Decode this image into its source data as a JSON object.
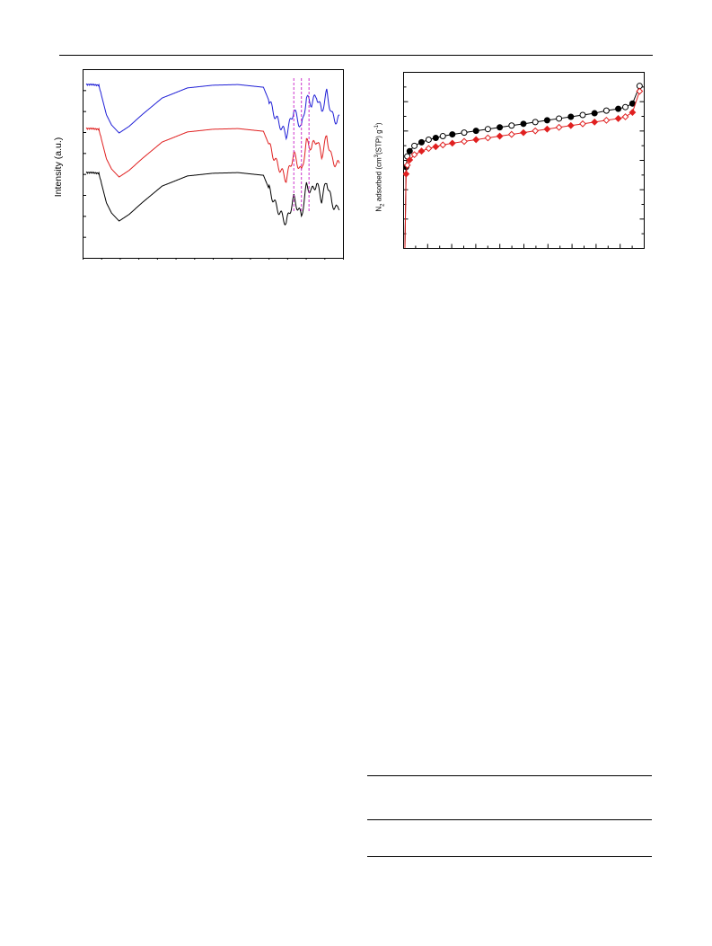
{
  "chart_data": [
    {
      "type": "line",
      "ylabel": "Intensity (a.u.)",
      "xlabel": "",
      "grid": false,
      "series_colors": [
        "#1f1fd6",
        "#e02020",
        "#000000"
      ],
      "offsets": [
        1.0,
        0.5,
        0.0
      ],
      "x": [
        0,
        0.02,
        0.05,
        0.08,
        0.1,
        0.13,
        0.17,
        0.22,
        0.3,
        0.4,
        0.5,
        0.6,
        0.7,
        0.75,
        0.79,
        0.82,
        0.85,
        0.87,
        0.89,
        0.91,
        0.93,
        0.95,
        0.97,
        0.99,
        1.0
      ],
      "shape": [
        1.0,
        1.0,
        0.99,
        0.55,
        0.4,
        0.28,
        0.38,
        0.55,
        0.8,
        0.95,
        0.99,
        1.0,
        0.96,
        0.5,
        0.25,
        0.62,
        0.35,
        0.8,
        0.72,
        0.84,
        0.6,
        0.88,
        0.55,
        0.45,
        0.5
      ],
      "markers": [
        0.82,
        0.85,
        0.88
      ]
    },
    {
      "type": "scatter",
      "ylabel_parts": [
        "N",
        "2",
        " adsorbed (cm",
        "3",
        "(STP) g",
        "-1",
        ")"
      ],
      "xlabel": "",
      "grid": false,
      "xlim": [
        0,
        1
      ],
      "ylim": [
        0,
        1
      ],
      "series": [
        {
          "color": "#000000",
          "x": [
            0.0,
            0.005,
            0.01,
            0.02,
            0.04,
            0.07,
            0.1,
            0.13,
            0.16,
            0.2,
            0.25,
            0.3,
            0.35,
            0.4,
            0.45,
            0.5,
            0.55,
            0.6,
            0.65,
            0.7,
            0.75,
            0.8,
            0.85,
            0.9,
            0.93,
            0.96,
            0.99
          ],
          "y": [
            0.0,
            0.46,
            0.52,
            0.55,
            0.58,
            0.6,
            0.615,
            0.625,
            0.635,
            0.645,
            0.655,
            0.665,
            0.675,
            0.685,
            0.695,
            0.705,
            0.715,
            0.725,
            0.735,
            0.745,
            0.755,
            0.765,
            0.78,
            0.79,
            0.8,
            0.82,
            0.92
          ]
        },
        {
          "color": "#e02020",
          "x": [
            0.0,
            0.005,
            0.01,
            0.02,
            0.04,
            0.07,
            0.1,
            0.13,
            0.16,
            0.2,
            0.25,
            0.3,
            0.35,
            0.4,
            0.45,
            0.5,
            0.55,
            0.6,
            0.65,
            0.7,
            0.75,
            0.8,
            0.85,
            0.9,
            0.93,
            0.96,
            0.99
          ],
          "y": [
            0.0,
            0.42,
            0.47,
            0.5,
            0.53,
            0.55,
            0.565,
            0.575,
            0.585,
            0.595,
            0.605,
            0.615,
            0.625,
            0.635,
            0.645,
            0.655,
            0.665,
            0.675,
            0.685,
            0.695,
            0.705,
            0.715,
            0.725,
            0.735,
            0.745,
            0.77,
            0.89
          ]
        }
      ]
    }
  ]
}
